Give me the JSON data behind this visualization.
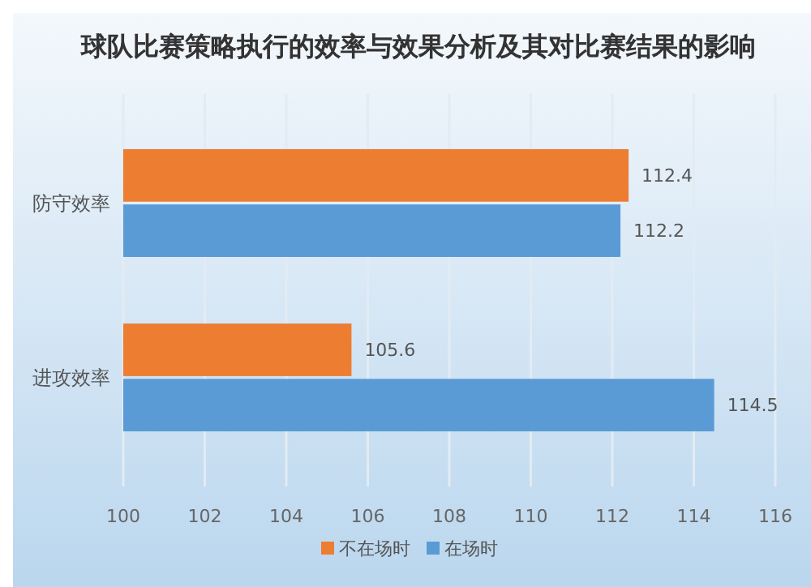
{
  "chart_data": {
    "type": "bar",
    "orientation": "horizontal",
    "title": "球队比赛策略执行的效率与效果分析及其对比赛结果的影响",
    "categories": [
      "防守效率",
      "进攻效率"
    ],
    "series": [
      {
        "name": "不在场时",
        "color": "#ed7d31",
        "values": [
          112.4,
          105.6
        ]
      },
      {
        "name": "在场时",
        "color": "#5b9bd5",
        "values": [
          112.2,
          114.5
        ]
      }
    ],
    "xlim": [
      100,
      116
    ],
    "xticks": [
      100,
      102,
      104,
      106,
      108,
      110,
      112,
      114,
      116
    ],
    "grid": "x",
    "legend": "bottom",
    "data_labels": true
  }
}
